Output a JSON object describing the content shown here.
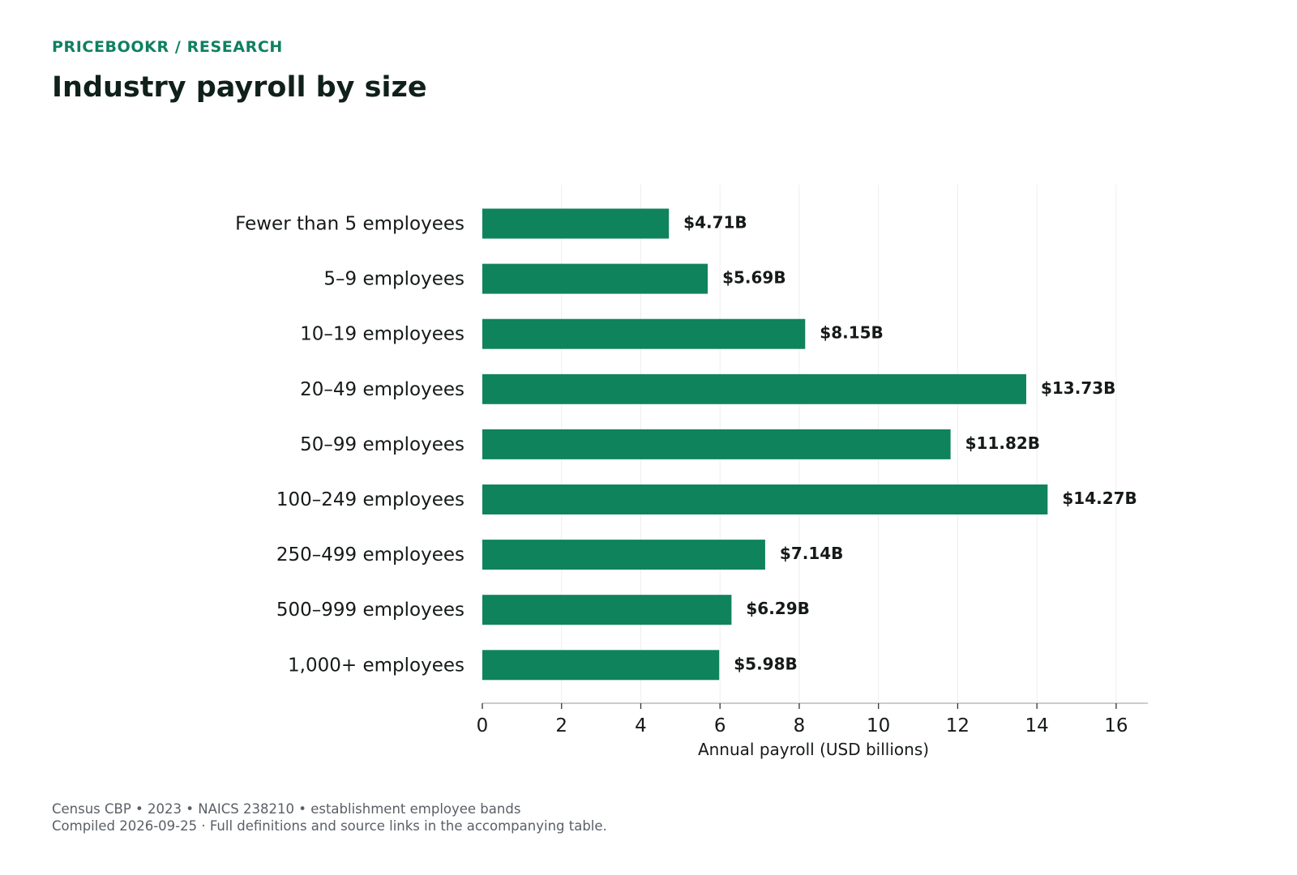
{
  "header": {
    "eyebrow": "PRICEBOOKR / RESEARCH",
    "title": "Industry payroll by size"
  },
  "colors": {
    "bar": "#0f835c",
    "accent": "#0f8060",
    "grid": "#eeeeee",
    "axis": "#cccccc",
    "text": "#151a18"
  },
  "chart_data": {
    "type": "bar",
    "orientation": "horizontal",
    "categories": [
      "Fewer than 5 employees",
      "5–9 employees",
      "10–19 employees",
      "20–49 employees",
      "50–99 employees",
      "100–249 employees",
      "250–499 employees",
      "500–999 employees",
      "1,000+ employees"
    ],
    "values": [
      4.71,
      5.69,
      8.15,
      13.73,
      11.82,
      14.27,
      7.14,
      6.29,
      5.98
    ],
    "data_labels": [
      "$4.71B",
      "$5.69B",
      "$8.15B",
      "$13.73B",
      "$11.82B",
      "$14.27B",
      "$7.14B",
      "$6.29B",
      "$5.98B"
    ],
    "xlabel": "Annual payroll (USD billions)",
    "ylabel": "",
    "xlim": [
      0,
      16.8
    ],
    "x_ticks": [
      0,
      2,
      4,
      6,
      8,
      10,
      12,
      14,
      16
    ],
    "grid": "vertical",
    "legend": "none"
  },
  "footer": {
    "source": "Census CBP • 2023 • NAICS 238210 • establishment employee bands",
    "note": "Compiled 2026-09-25 · Full definitions and source links in the accompanying table."
  }
}
